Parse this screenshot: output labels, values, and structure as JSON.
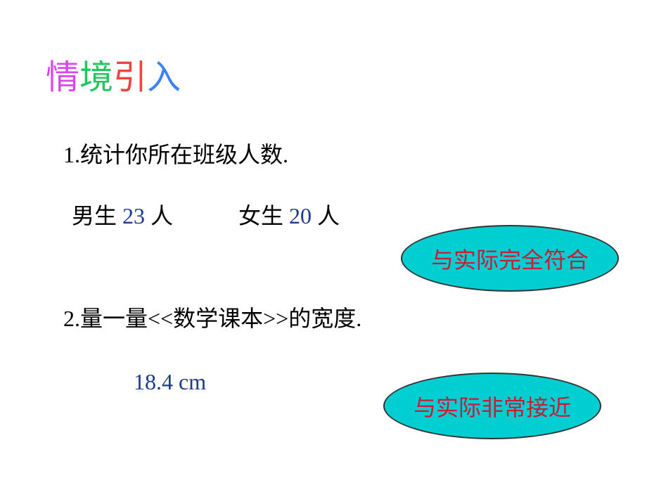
{
  "title": {
    "char1": "情",
    "char2": "境",
    "char3": "引",
    "char4": "入"
  },
  "question1": "1.统计你所在班级人数.",
  "gender": {
    "male_label": "男生",
    "male_value": "23",
    "male_suffix": "人",
    "female_label": "女生",
    "female_value": "20",
    "female_suffix": "人"
  },
  "ellipse1_text": "与实际完全符合",
  "question2": "2.量一量<<数学课本>>的宽度.",
  "measurement": "18.4 cm",
  "ellipse2_text": "与实际非常接近",
  "styles": {
    "title_colors": [
      "#d946ef",
      "#22c55e",
      "#ef4444",
      "#3b82f6"
    ],
    "title_fontsize": 48,
    "body_fontsize": 32,
    "black": "#000000",
    "blue_value": "#1e3a8a",
    "ellipse_bg": "#00ced1",
    "ellipse_border": "#333333",
    "ellipse_text_color": "#c41e3a",
    "background": "#ffffff"
  }
}
